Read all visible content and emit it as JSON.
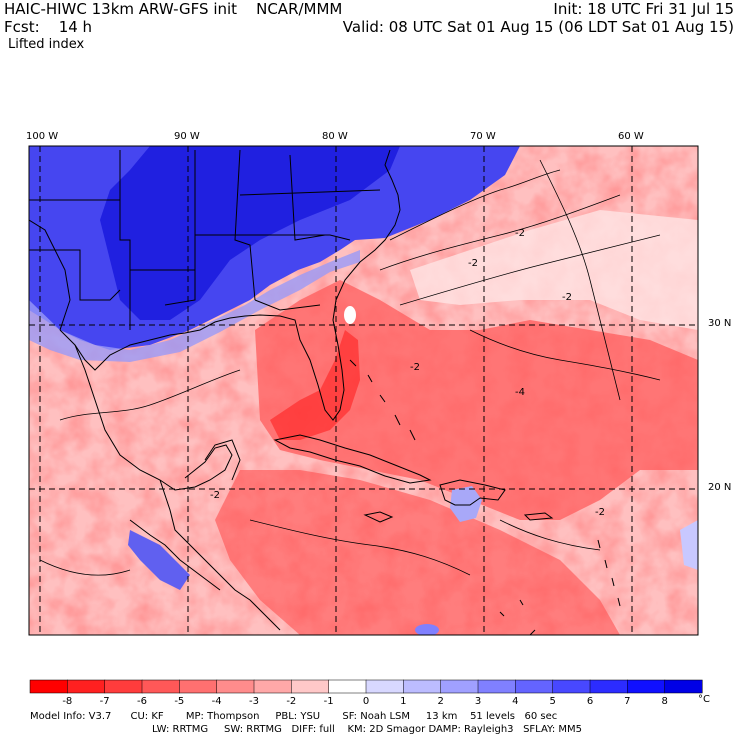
{
  "header": {
    "title": "HAIC-HIWC 13km ARW-GFS init    NCAR/MMM",
    "forecast": "Fcst:    14 h",
    "init": "Init: 18 UTC Fri 31 Jul 15",
    "valid": "Valid: 08 UTC Sat 01 Aug 15 (06 LDT Sat 01 Aug 15)",
    "field": "Lifted index"
  },
  "map": {
    "lon_labels": [
      "100 W",
      "90 W",
      "80 W",
      "70 W",
      "60 W"
    ],
    "lat_labels": [
      "30 N",
      "20 N"
    ],
    "contour_labels": [
      "-2",
      "-2",
      "-2",
      "-2",
      "-2",
      "-2",
      "-4"
    ]
  },
  "colorbar": {
    "labels": [
      "-8",
      "-7",
      "-6",
      "-5",
      "-4",
      "-3",
      "-2",
      "-1",
      "0",
      "1",
      "2",
      "3",
      "4",
      "5",
      "6",
      "7",
      "8"
    ],
    "unit": "°C",
    "colors": [
      "#ff0000",
      "#ff2020",
      "#ff3c3c",
      "#ff5858",
      "#ff7070",
      "#ff8c8c",
      "#ffa8a8",
      "#ffc8c8",
      "#ffffff",
      "#d8d8ff",
      "#bcbcff",
      "#a0a0ff",
      "#8080ff",
      "#6464ff",
      "#4848ff",
      "#2c2cff",
      "#1010ff",
      "#0000e6"
    ]
  },
  "model_info": {
    "line1": "Model Info: V3.7      CU: KF       MP: Thompson     PBL: YSU       SF: Noah LSM     13 km    51 levels   60 sec",
    "line2": "LW: RRTMG     SW: RRTMG   DIFF: full    KM: 2D Smagor DAMP: Rayleigh3   SFLAY: MM5"
  }
}
